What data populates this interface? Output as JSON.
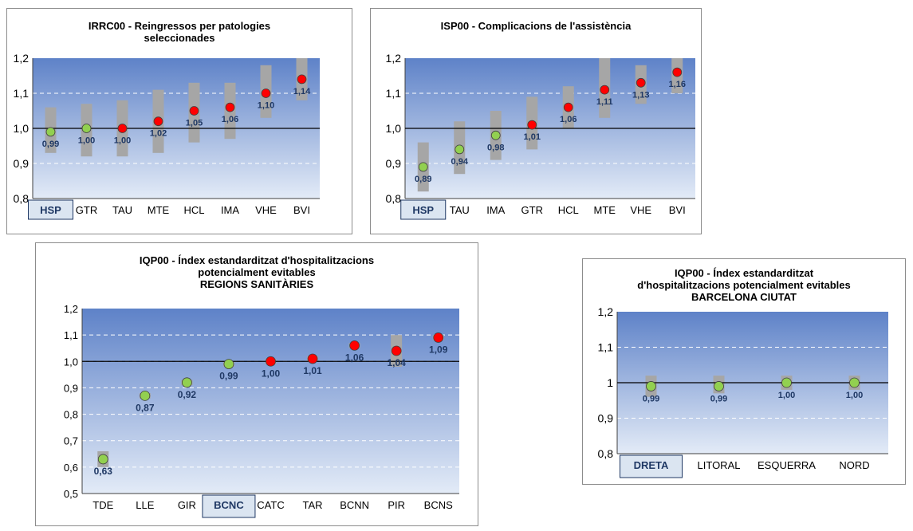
{
  "chart_data": [
    {
      "type": "scatter",
      "title": [
        "IRRC00 - Reingressos per patologies",
        "seleccionades"
      ],
      "categories": [
        "HSP",
        "GTR",
        "TAU",
        "MTE",
        "HCL",
        "IMA",
        "VHE",
        "BVI"
      ],
      "highlight": "HSP",
      "values": [
        0.99,
        1.0,
        1.0,
        1.02,
        1.05,
        1.06,
        1.1,
        1.14
      ],
      "value_labels": [
        "0,99",
        "1,00",
        "1,00",
        "1,02",
        "1,05",
        "1,06",
        "1,10",
        "1,14"
      ],
      "ci_low": [
        0.93,
        0.92,
        0.92,
        0.93,
        0.96,
        0.97,
        1.03,
        1.08
      ],
      "ci_high": [
        1.06,
        1.07,
        1.08,
        1.11,
        1.13,
        1.13,
        1.18,
        1.2
      ],
      "point_colors": [
        "green",
        "green",
        "red",
        "red",
        "red",
        "red",
        "red",
        "red"
      ],
      "ylim": [
        0.8,
        1.2
      ],
      "yticks": [
        "0,8",
        "0,9",
        "1,0",
        "1,1",
        "1,2"
      ],
      "reference_line": 1.0
    },
    {
      "type": "scatter",
      "title": [
        "ISP00 - Complicacions de l'assistència"
      ],
      "categories": [
        "HSP",
        "TAU",
        "IMA",
        "GTR",
        "HCL",
        "MTE",
        "VHE",
        "BVI"
      ],
      "highlight": "HSP",
      "values": [
        0.89,
        0.94,
        0.98,
        1.01,
        1.06,
        1.11,
        1.13,
        1.16
      ],
      "value_labels": [
        "0,89",
        "0,94",
        "0,98",
        "1,01",
        "1,06",
        "1,11",
        "1,13",
        "1,16"
      ],
      "ci_low": [
        0.82,
        0.87,
        0.91,
        0.94,
        1.0,
        1.03,
        1.07,
        1.1
      ],
      "ci_high": [
        0.96,
        1.02,
        1.05,
        1.09,
        1.12,
        1.2,
        1.18,
        1.2
      ],
      "point_colors": [
        "green",
        "green",
        "green",
        "red",
        "red",
        "red",
        "red",
        "red"
      ],
      "ylim": [
        0.8,
        1.2
      ],
      "yticks": [
        "0,8",
        "0,9",
        "1,0",
        "1,1",
        "1,2"
      ],
      "reference_line": 1.0
    },
    {
      "type": "scatter",
      "title": [
        "IQP00 - Índex estandarditzat d'hospitalitzacions",
        "potencialment evitables",
        "REGIONS  SANITÀRIES"
      ],
      "categories": [
        "TDE",
        "LLE",
        "GIR",
        "BCNC",
        "CATC",
        "TAR",
        "BCNN",
        "PIR",
        "BCNS"
      ],
      "highlight": "BCNC",
      "values": [
        0.63,
        0.87,
        0.92,
        0.99,
        1.0,
        1.01,
        1.06,
        1.04,
        1.09
      ],
      "value_labels": [
        "0,63",
        "0,87",
        "0,92",
        "0,99",
        "1,00",
        "1,01",
        "1,06",
        "1,04",
        "1,09"
      ],
      "ci_low": [
        0.6,
        0.86,
        0.91,
        0.98,
        0.99,
        1.0,
        1.05,
        0.98,
        1.08
      ],
      "ci_high": [
        0.66,
        0.88,
        0.93,
        1.0,
        1.01,
        1.02,
        1.07,
        1.1,
        1.1
      ],
      "point_colors": [
        "green",
        "green",
        "green",
        "green",
        "red",
        "red",
        "red",
        "red",
        "red"
      ],
      "ylim": [
        0.5,
        1.2
      ],
      "yticks": [
        "0,5",
        "0,6",
        "0,7",
        "0,8",
        "0,9",
        "1,0",
        "1,1",
        "1,2"
      ],
      "reference_line": 1.0
    },
    {
      "type": "scatter",
      "title": [
        "IQP00 - Índex estandarditzat",
        "d'hospitalitzacions potencialment evitables",
        "BARCELONA  CIUTAT"
      ],
      "categories": [
        "DRETA",
        "LITORAL",
        "ESQUERRA",
        "NORD"
      ],
      "highlight": "DRETA",
      "values": [
        0.99,
        0.99,
        1.0,
        1.0
      ],
      "value_labels": [
        "0,99",
        "0,99",
        "1,00",
        "1,00"
      ],
      "ci_low": [
        0.96,
        0.97,
        0.98,
        0.98
      ],
      "ci_high": [
        1.02,
        1.02,
        1.02,
        1.02
      ],
      "point_colors": [
        "green",
        "green",
        "green",
        "green"
      ],
      "ylim": [
        0.8,
        1.2
      ],
      "yticks": [
        "0,8",
        "0,9",
        "1",
        "1,1",
        "1,2"
      ],
      "reference_line": 1.0
    }
  ],
  "colors": {
    "plot_top": "#5e82c8",
    "plot_bottom": "#e3ebf7",
    "ci_bar": "#a6a6a6",
    "point_green": "#92d050",
    "point_red": "#ff0000",
    "value_label": "#1f3864",
    "highlight_fill": "#dbe5f1",
    "highlight_border": "#1f3864"
  }
}
